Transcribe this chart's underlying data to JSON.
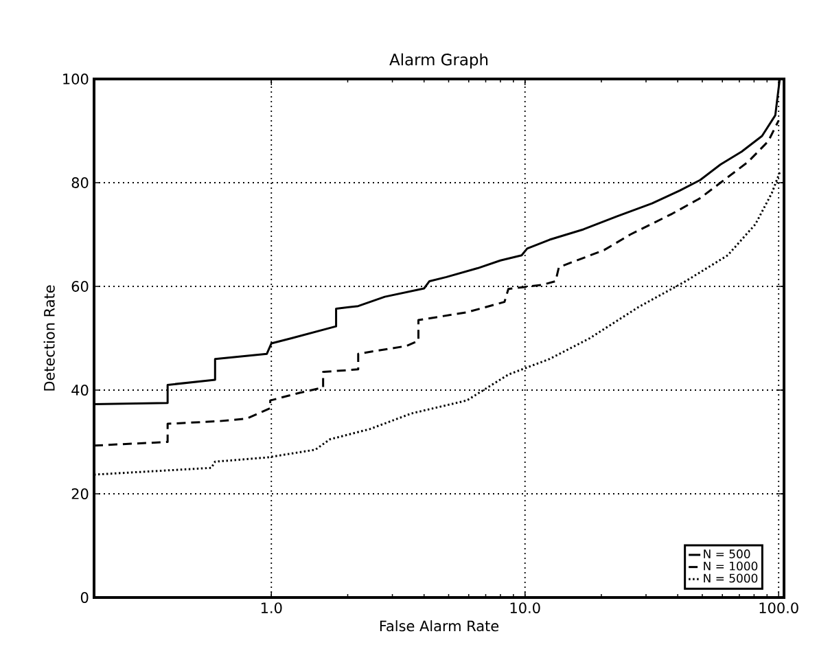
{
  "chart_data": {
    "type": "line",
    "title": "Alarm Graph",
    "xlabel": "False Alarm Rate",
    "ylabel": "Detection Rate",
    "log": "x",
    "grid": true,
    "legend": "bottom right",
    "xlim": [
      0.2,
      105
    ],
    "ylim": [
      0,
      100
    ],
    "xticks": [
      {
        "value": 1,
        "label": "1.0"
      },
      {
        "value": 10,
        "label": "10.0"
      },
      {
        "value": 100,
        "label": "100.0"
      }
    ],
    "yticks": [
      0,
      20,
      40,
      60,
      80,
      100
    ],
    "series": [
      {
        "name": "N = 500",
        "color": "#000000",
        "line_style": "solid",
        "x": [
          0.2,
          0.39,
          0.39,
          0.6,
          0.6,
          0.96,
          1.0,
          1.2,
          1.8,
          1.8,
          2.2,
          2.8,
          4.0,
          4.2,
          4.9,
          6.5,
          8.0,
          9.7,
          10.2,
          12.5,
          17,
          23,
          31.7,
          40.8,
          49,
          59,
          71.5,
          86,
          97,
          101
        ],
        "values": [
          37.3,
          37.5,
          41,
          42,
          46,
          47,
          49,
          50,
          52.3,
          55.7,
          56.2,
          58,
          59.6,
          61,
          61.8,
          63.5,
          65,
          66,
          67.3,
          69,
          71,
          73.5,
          76,
          78.5,
          80.5,
          83.5,
          86,
          89,
          93,
          100
        ]
      },
      {
        "name": "N = 1000",
        "color": "#000000",
        "line_style": "dashed",
        "x": [
          0.2,
          0.39,
          0.39,
          0.62,
          0.8,
          0.99,
          0.99,
          1.3,
          1.6,
          1.6,
          2.2,
          2.2,
          3.4,
          3.8,
          3.8,
          5.9,
          8.3,
          8.6,
          11.7,
          13.2,
          13.6,
          20.5,
          26,
          38,
          49,
          59,
          75.7,
          91,
          100
        ],
        "values": [
          29.3,
          30,
          33.5,
          34,
          34.5,
          36.5,
          38,
          39.5,
          40.5,
          43.5,
          44,
          47,
          48.5,
          49.5,
          53.5,
          55,
          57,
          59.5,
          60.3,
          61,
          63.7,
          67,
          70,
          74,
          77,
          80,
          84,
          88,
          92
        ]
      },
      {
        "name": "N = 5000",
        "color": "#000000",
        "line_style": "dotted",
        "x": [
          0.2,
          0.58,
          0.6,
          0.96,
          1.49,
          1.7,
          2.45,
          3.57,
          5.9,
          8.6,
          12.5,
          18,
          28,
          43,
          63,
          81,
          94,
          101
        ],
        "values": [
          23.7,
          25,
          26.2,
          27,
          28.5,
          30.5,
          32.5,
          35.5,
          38,
          43,
          46,
          50,
          56,
          61,
          66,
          72,
          78,
          82
        ]
      }
    ]
  }
}
